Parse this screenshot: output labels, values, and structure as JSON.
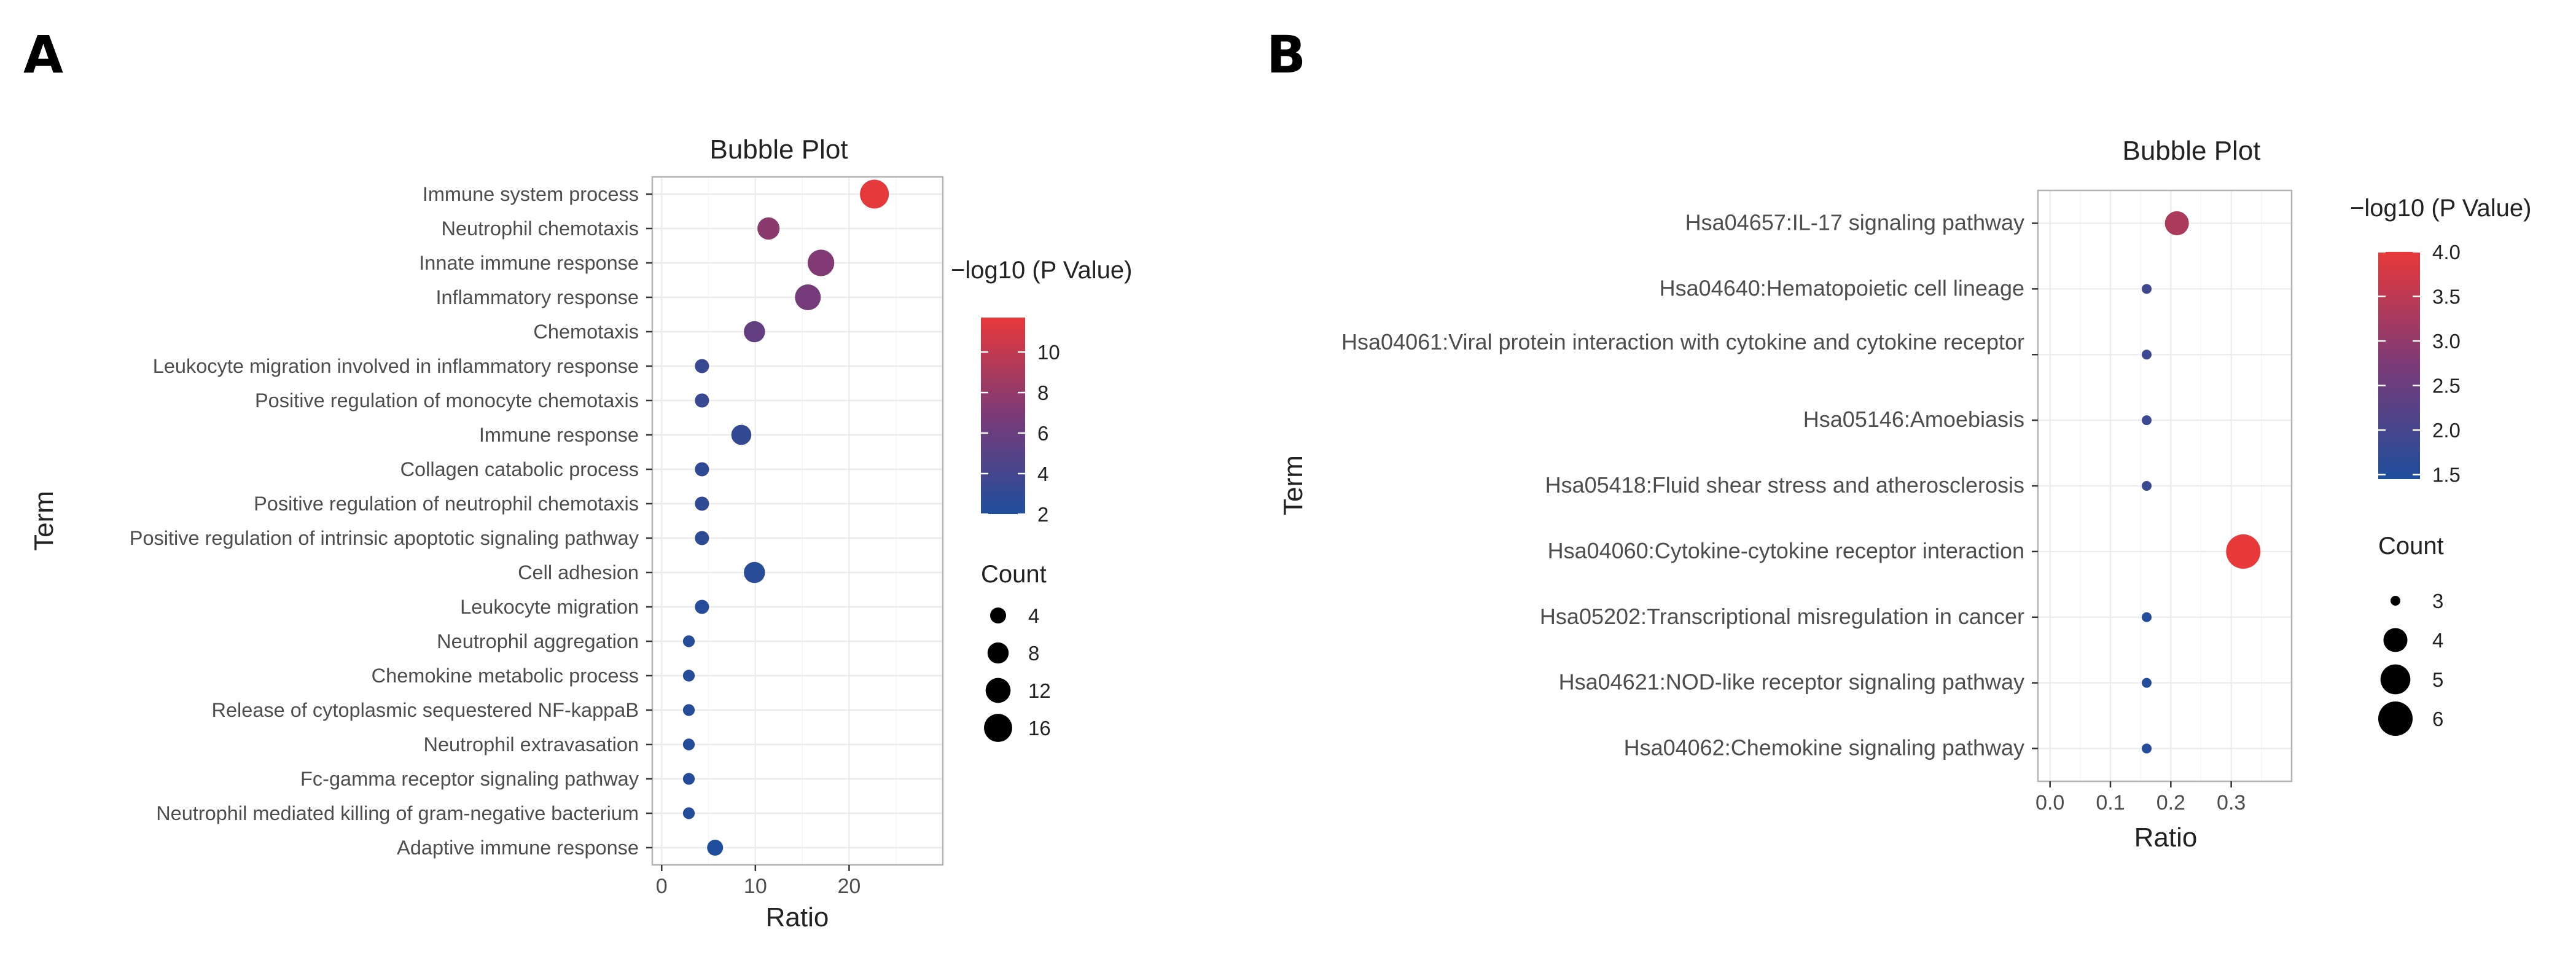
{
  "chart_data": [
    {
      "panel": "A",
      "type": "scatter",
      "title": "Bubble Plot",
      "xlabel": "Ratio",
      "ylabel": "Term",
      "xlim": [
        -1,
        30
      ],
      "xticks": [
        0,
        10,
        20
      ],
      "color_legend": {
        "title": "−log10 (P Value)",
        "min": 2,
        "max": 11.7,
        "ticks": [
          2,
          4,
          6,
          8,
          10
        ],
        "low_color": "#1f4e9c",
        "mid_color": "#7a3a78",
        "high_color": "#e8393a"
      },
      "size_legend": {
        "title": "Count",
        "ticks": [
          4,
          8,
          12,
          16
        ]
      },
      "points": [
        {
          "term": "Immune system process",
          "ratio": 22.7,
          "count": 17,
          "log10p": 11.6
        },
        {
          "term": "Neutrophil chemotaxis",
          "ratio": 11.4,
          "count": 9,
          "log10p": 7.6
        },
        {
          "term": "Innate immune response",
          "ratio": 17.0,
          "count": 14,
          "log10p": 7.2
        },
        {
          "term": "Inflammatory response",
          "ratio": 15.6,
          "count": 13,
          "log10p": 6.6
        },
        {
          "term": "Chemotaxis",
          "ratio": 9.9,
          "count": 8,
          "log10p": 5.6
        },
        {
          "term": "Leukocyte migration involved in inflammatory response",
          "ratio": 4.3,
          "count": 3,
          "log10p": 3.4
        },
        {
          "term": "Positive regulation of monocyte chemotaxis",
          "ratio": 4.3,
          "count": 3,
          "log10p": 3.4
        },
        {
          "term": "Immune response",
          "ratio": 8.5,
          "count": 7,
          "log10p": 3.1
        },
        {
          "term": "Collagen catabolic process",
          "ratio": 4.3,
          "count": 3,
          "log10p": 2.9
        },
        {
          "term": "Positive regulation of neutrophil chemotaxis",
          "ratio": 4.3,
          "count": 3,
          "log10p": 2.9
        },
        {
          "term": "Positive regulation of intrinsic apoptotic signaling pathway",
          "ratio": 4.3,
          "count": 3,
          "log10p": 2.8
        },
        {
          "term": "Cell adhesion",
          "ratio": 9.9,
          "count": 8,
          "log10p": 2.5
        },
        {
          "term": "Leukocyte migration",
          "ratio": 4.3,
          "count": 3,
          "log10p": 2.3
        },
        {
          "term": "Neutrophil aggregation",
          "ratio": 2.9,
          "count": 2,
          "log10p": 2.3
        },
        {
          "term": "Chemokine metabolic process",
          "ratio": 2.9,
          "count": 2,
          "log10p": 2.3
        },
        {
          "term": "Release of cytoplasmic sequestered NF-kappaB",
          "ratio": 2.9,
          "count": 2,
          "log10p": 2.3
        },
        {
          "term": "Neutrophil extravasation",
          "ratio": 2.9,
          "count": 2,
          "log10p": 2.2
        },
        {
          "term": "Fc-gamma receptor signaling pathway",
          "ratio": 2.9,
          "count": 2,
          "log10p": 2.2
        },
        {
          "term": "Neutrophil mediated killing of gram-negative bacterium",
          "ratio": 2.9,
          "count": 2,
          "log10p": 2.2
        },
        {
          "term": "Adaptive immune response",
          "ratio": 5.7,
          "count": 4,
          "log10p": 2.0
        }
      ]
    },
    {
      "panel": "B",
      "type": "scatter",
      "title": "Bubble Plot",
      "xlabel": "Ratio",
      "ylabel": "Term",
      "xlim": [
        -0.02,
        0.4
      ],
      "xticks": [
        0.0,
        0.1,
        0.2,
        0.3
      ],
      "color_legend": {
        "title": "−log10 (P Value)",
        "min": 1.45,
        "max": 4.0,
        "ticks": [
          1.5,
          2.0,
          2.5,
          3.0,
          3.5,
          4.0
        ],
        "low_color": "#1f4e9c",
        "mid_color": "#7a3a78",
        "high_color": "#e8393a"
      },
      "size_legend": {
        "title": "Count",
        "ticks": [
          3,
          4,
          5,
          6
        ]
      },
      "points": [
        {
          "term": "Hsa04657:IL-17 signaling pathway",
          "ratio": 0.21,
          "count": 4,
          "log10p": 3.3
        },
        {
          "term": "Hsa04640:Hematopoietic cell lineage",
          "ratio": 0.16,
          "count": 3,
          "log10p": 1.9
        },
        {
          "term": "Hsa04061:Viral protein interaction with cytokine and cytokine receptor",
          "ratio": 0.16,
          "count": 3,
          "log10p": 1.85
        },
        {
          "term": "Hsa05146:Amoebiasis",
          "ratio": 0.16,
          "count": 3,
          "log10p": 1.85
        },
        {
          "term": "Hsa05418:Fluid shear stress and atherosclerosis",
          "ratio": 0.16,
          "count": 3,
          "log10p": 1.8
        },
        {
          "term": "Hsa04060:Cytokine-cytokine receptor interaction",
          "ratio": 0.32,
          "count": 6,
          "log10p": 4.0
        },
        {
          "term": "Hsa05202:Transcriptional misregulation in cancer",
          "ratio": 0.16,
          "count": 3,
          "log10p": 1.5
        },
        {
          "term": "Hsa04621:NOD-like receptor signaling pathway",
          "ratio": 0.16,
          "count": 3,
          "log10p": 1.5
        },
        {
          "term": "Hsa04062:Chemokine signaling pathway",
          "ratio": 0.16,
          "count": 3,
          "log10p": 1.5
        }
      ]
    }
  ]
}
